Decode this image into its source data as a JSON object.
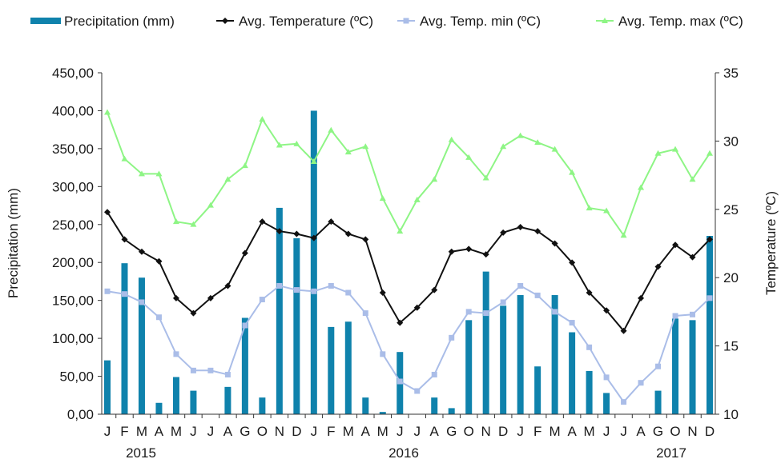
{
  "chart_data": {
    "type": "bar+line",
    "months": [
      "J",
      "F",
      "M",
      "A",
      "M",
      "J",
      "J",
      "A",
      "G",
      "O",
      "N",
      "D",
      "J",
      "F",
      "M",
      "A",
      "M",
      "J",
      "J",
      "A",
      "G",
      "O",
      "N",
      "D",
      "J",
      "F",
      "M",
      "A",
      "M",
      "J",
      "J",
      "A",
      "G",
      "O",
      "N",
      "D"
    ],
    "years": [
      {
        "label": "2015",
        "start_index": 0
      },
      {
        "label": "2016",
        "start_index": 12
      },
      {
        "label": "2017",
        "start_index": 24
      }
    ],
    "ylabel_left": "Precipitation (mm)",
    "ylabel_right": "Temperature (ºC)",
    "ylim_left": [
      0,
      450
    ],
    "ylim_right": [
      10,
      35
    ],
    "yticks_left": [
      "0,00",
      "50,00",
      "100,00",
      "150,00",
      "200,00",
      "250,00",
      "300,00",
      "350,00",
      "400,00",
      "450,00"
    ],
    "yticks_right": [
      "10",
      "15",
      "20",
      "25",
      "30",
      "35"
    ],
    "legend_position": "top",
    "series": [
      {
        "name": "Precipitation (mm)",
        "kind": "bar",
        "axis": "left",
        "color": "#0f82ac",
        "values": [
          71,
          199,
          180,
          15,
          49,
          31,
          0,
          36,
          127,
          22,
          272,
          232,
          400,
          115,
          122,
          22,
          3,
          82,
          0,
          22,
          8,
          124,
          188,
          143,
          157,
          63,
          157,
          108,
          57,
          28,
          0,
          0,
          31,
          126,
          124,
          235
        ]
      },
      {
        "name": "Avg. Temperature (ºC)",
        "kind": "line",
        "axis": "right",
        "color": "#111111",
        "marker": "diamond",
        "values": [
          24.8,
          22.8,
          21.9,
          21.2,
          18.5,
          17.4,
          18.5,
          19.4,
          21.8,
          24.1,
          23.4,
          23.2,
          22.9,
          24.1,
          23.2,
          22.8,
          18.9,
          16.7,
          17.8,
          19.1,
          21.9,
          22.1,
          21.7,
          23.3,
          23.7,
          23.4,
          22.5,
          21.1,
          18.9,
          17.6,
          16.1,
          18.5,
          20.8,
          22.4,
          21.5,
          22.8
        ]
      },
      {
        "name": "Avg. Temp. min (ºC)",
        "kind": "line",
        "axis": "right",
        "color": "#aabde8",
        "marker": "square",
        "values": [
          19.0,
          18.8,
          18.2,
          17.1,
          14.4,
          13.2,
          13.2,
          12.9,
          16.5,
          18.4,
          19.4,
          19.1,
          19.0,
          19.4,
          18.9,
          17.4,
          14.4,
          12.4,
          11.7,
          12.9,
          15.6,
          17.5,
          17.4,
          18.2,
          19.4,
          18.7,
          17.5,
          16.7,
          14.9,
          12.7,
          10.9,
          12.3,
          13.5,
          17.2,
          17.3,
          18.5
        ]
      },
      {
        "name": "Avg. Temp. max (ºC)",
        "kind": "line",
        "axis": "right",
        "color": "#8ef585",
        "marker": "triangle",
        "values": [
          32.1,
          28.7,
          27.6,
          27.6,
          24.1,
          23.9,
          25.3,
          27.2,
          28.2,
          31.6,
          29.7,
          29.8,
          28.5,
          30.8,
          29.2,
          29.6,
          25.8,
          23.4,
          25.7,
          27.2,
          30.1,
          28.8,
          27.3,
          29.6,
          30.4,
          29.9,
          29.4,
          27.7,
          25.1,
          24.9,
          23.1,
          26.6,
          29.1,
          29.4,
          27.2,
          29.1
        ]
      }
    ]
  }
}
